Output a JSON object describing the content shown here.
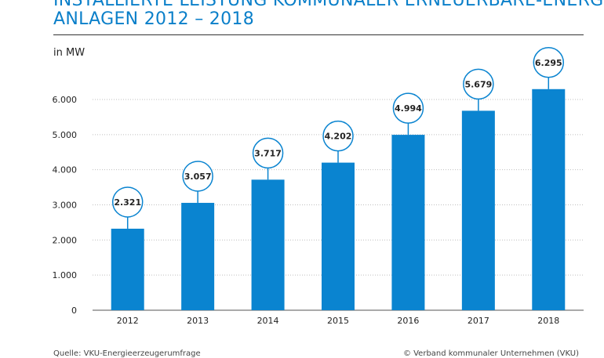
{
  "chart_data": {
    "type": "bar",
    "title_lines": [
      "INSTALLIERTE LEISTUNG KOMMUNALER ERNEUERBARE-ENERGIEN",
      "ANLAGEN 2012 – 2018"
    ],
    "unit_label": "in MW",
    "categories": [
      "2012",
      "2013",
      "2014",
      "2015",
      "2016",
      "2017",
      "2018"
    ],
    "values": [
      2321,
      3057,
      3717,
      4202,
      4994,
      5679,
      6295
    ],
    "data_labels": [
      "2.321",
      "3.057",
      "3.717",
      "4.202",
      "4.994",
      "5.679",
      "6.295"
    ],
    "y_ticks": [
      0,
      1000,
      2000,
      3000,
      4000,
      5000,
      6000
    ],
    "y_tick_labels": [
      "0",
      "1.000",
      "2.000",
      "3.000",
      "4.000",
      "5.000",
      "6.000"
    ],
    "ylim": [
      0,
      6000
    ],
    "grid": true,
    "bar_color": "#0a84d0",
    "grid_color": "#bfbfbf",
    "label_circle_color": "#0a84d0"
  },
  "footer": {
    "left": "Quelle: VKU-Energieerzeugerumfrage",
    "right": "© Verband kommunaler Unternehmen (VKU)"
  }
}
